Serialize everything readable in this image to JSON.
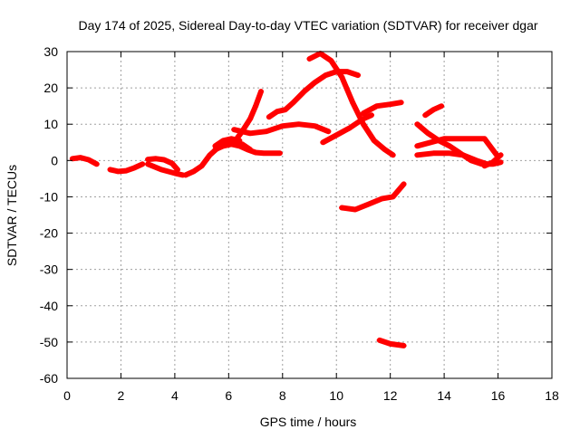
{
  "chart_data": {
    "type": "line",
    "title": "Day 174 of 2025, Sidereal Day-to-day VTEC variation (SDTVAR) for receiver dgar",
    "xlabel": "GPS time / hours",
    "ylabel": "SDTVAR / TECUs",
    "xlim": [
      0,
      18
    ],
    "ylim": [
      -60,
      30
    ],
    "xticks": [
      0,
      2,
      4,
      6,
      8,
      10,
      12,
      14,
      16,
      18
    ],
    "yticks": [
      30,
      20,
      10,
      0,
      -10,
      -20,
      -30,
      -40,
      -50,
      -60
    ],
    "grid": true,
    "legend": "none",
    "color": "#ff0000",
    "series": [
      {
        "x": [
          0.2,
          0.5,
          0.8,
          1.1
        ],
        "y": [
          0.5,
          0.8,
          0.2,
          -1.0
        ]
      },
      {
        "x": [
          1.6,
          1.9,
          2.2,
          2.5,
          2.8
        ],
        "y": [
          -2.5,
          -3.0,
          -2.8,
          -2.0,
          -1.0
        ]
      },
      {
        "x": [
          3.0,
          3.3,
          3.6,
          3.9,
          4.1
        ],
        "y": [
          0.3,
          0.5,
          0.2,
          -0.8,
          -2.5
        ]
      },
      {
        "x": [
          3.0,
          3.5,
          4.0,
          4.3
        ],
        "y": [
          -1.0,
          -2.5,
          -3.5,
          -4.0
        ]
      },
      {
        "x": [
          4.4,
          4.7,
          5.0,
          5.3,
          5.6,
          5.9,
          6.2,
          6.5,
          6.8
        ],
        "y": [
          -4.0,
          -3.0,
          -1.5,
          1.5,
          3.5,
          4.5,
          5.0,
          4.5,
          3.0
        ]
      },
      {
        "x": [
          5.5,
          5.8,
          6.1,
          6.4,
          6.7,
          7.0,
          7.3,
          7.6,
          7.9
        ],
        "y": [
          3.0,
          4.0,
          4.5,
          4.0,
          3.0,
          2.2,
          2.0,
          2.0,
          2.0
        ]
      },
      {
        "x": [
          5.5,
          5.8,
          6.1,
          6.4
        ],
        "y": [
          4.0,
          5.5,
          6.0,
          5.5
        ]
      },
      {
        "x": [
          6.2,
          6.5,
          6.8,
          7.0,
          7.2
        ],
        "y": [
          5.0,
          8.0,
          11.5,
          15.0,
          19.0
        ]
      },
      {
        "x": [
          6.2,
          6.8,
          7.4,
          8.0,
          8.6,
          9.2,
          9.7
        ],
        "y": [
          8.5,
          7.5,
          8.0,
          9.5,
          10.0,
          9.5,
          8.0
        ]
      },
      {
        "x": [
          7.5,
          7.8,
          8.1,
          8.4,
          8.8,
          9.2,
          9.6,
          10.0,
          10.4,
          10.8
        ],
        "y": [
          12.0,
          13.5,
          14.0,
          16.0,
          19.0,
          21.5,
          23.5,
          24.5,
          24.5,
          23.5
        ]
      },
      {
        "x": [
          9.5,
          10.0,
          10.5,
          11.0,
          11.3
        ],
        "y": [
          5.0,
          7.0,
          9.0,
          11.5,
          12.5
        ]
      },
      {
        "x": [
          9.0,
          9.4,
          9.8,
          10.2,
          10.6,
          11.0,
          11.4,
          11.8,
          12.1
        ],
        "y": [
          28.0,
          29.5,
          27.5,
          23.0,
          16.0,
          10.0,
          5.5,
          3.0,
          1.5
        ]
      },
      {
        "x": [
          11.0,
          11.5,
          12.0,
          12.4
        ],
        "y": [
          13.0,
          15.0,
          15.5,
          16.0
        ]
      },
      {
        "x": [
          10.2,
          10.7,
          11.2,
          11.7,
          12.1,
          12.5
        ],
        "y": [
          -13.0,
          -13.5,
          -12.0,
          -10.5,
          -10.0,
          -6.5
        ]
      },
      {
        "x": [
          11.6,
          12.0,
          12.5
        ],
        "y": [
          -49.5,
          -50.5,
          -51.0
        ]
      },
      {
        "x": [
          13.0,
          13.4,
          13.8,
          14.2,
          14.6,
          15.0,
          15.4,
          15.8,
          16.1
        ],
        "y": [
          10.0,
          7.5,
          5.5,
          4.0,
          2.0,
          0.0,
          -1.0,
          -1.0,
          -0.5
        ]
      },
      {
        "x": [
          13.0,
          13.5,
          14.0,
          14.5,
          15.0,
          15.5,
          16.0
        ],
        "y": [
          4.0,
          5.0,
          6.0,
          6.0,
          6.0,
          6.0,
          1.0
        ]
      },
      {
        "x": [
          13.0,
          13.6,
          14.2,
          14.7,
          15.2,
          15.6
        ],
        "y": [
          1.5,
          2.0,
          2.0,
          1.5,
          0.0,
          -1.0
        ]
      },
      {
        "x": [
          13.3,
          13.6,
          13.9
        ],
        "y": [
          12.5,
          14.0,
          15.0
        ]
      },
      {
        "x": [
          15.5,
          15.8,
          16.1
        ],
        "y": [
          -1.5,
          -0.5,
          1.5
        ]
      }
    ]
  }
}
